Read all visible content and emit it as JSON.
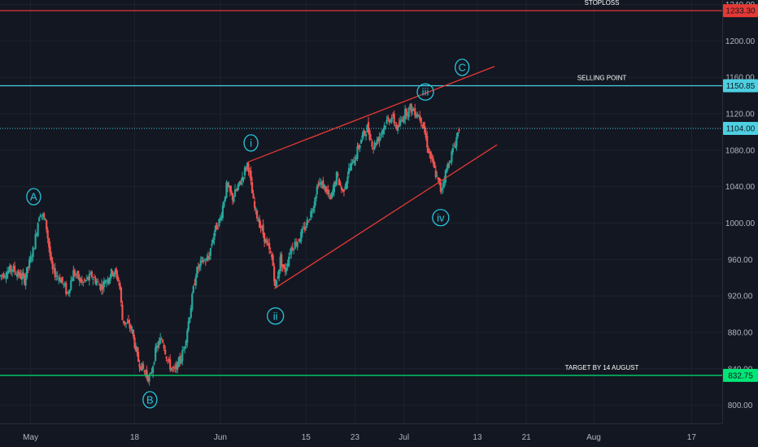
{
  "colors": {
    "background": "#131722",
    "grid": "#1e222d",
    "up": "#26a69a",
    "down": "#ef5350",
    "stoploss": "#e53935",
    "selling": "#4dd0e1",
    "target": "#00e676",
    "channel": "#e53935",
    "wave": "#26c6da",
    "axis_text": "#b2b5be",
    "annotation_text": "#ffffff"
  },
  "chart_data": {
    "type": "candlestick",
    "x_ticks": [
      {
        "label": "May",
        "day": 0
      },
      {
        "label": "18",
        "day": 17
      },
      {
        "label": "Jun",
        "day": 31
      },
      {
        "label": "15",
        "day": 45
      },
      {
        "label": "23",
        "day": 53
      },
      {
        "label": "Jul",
        "day": 61
      },
      {
        "label": "13",
        "day": 73
      },
      {
        "label": "21",
        "day": 81
      },
      {
        "label": "Aug",
        "day": 92
      },
      {
        "label": "17",
        "day": 108
      }
    ],
    "xlim": [
      -5,
      113
    ],
    "y_ticks": [
      "800.00",
      "840.00",
      "880.00",
      "920.00",
      "960.00",
      "1000.00",
      "1040.00",
      "1080.00",
      "1120.00",
      "1160.00",
      "1200.00",
      "1240.00"
    ],
    "ylim": [
      780,
      1245
    ],
    "price_levels": [
      {
        "name": "stoploss",
        "price": 1233.3,
        "label": "1233.30",
        "annotation": "STOPLOSS",
        "color": "#e53935",
        "style": "solid"
      },
      {
        "name": "selling-point",
        "price": 1150.85,
        "label": "1150.85",
        "annotation": "SELLING POINT",
        "color": "#4dd0e1",
        "style": "solid"
      },
      {
        "name": "last-price",
        "price": 1104.0,
        "label": "1104.00",
        "annotation": "",
        "color": "#4dd0e1",
        "style": "dotted"
      },
      {
        "name": "target",
        "price": 832.75,
        "label": "832.75",
        "annotation": "TARGET BY 14 AUGUST",
        "color": "#00e676",
        "style": "solid"
      }
    ],
    "channel_lines": [
      {
        "name": "upper-channel",
        "points": [
          [
            35.5,
            1067
          ],
          [
            75.8,
            1172
          ]
        ]
      },
      {
        "name": "lower-channel",
        "points": [
          [
            39.8,
            928
          ],
          [
            76.2,
            1086
          ]
        ]
      }
    ],
    "wave_labels": [
      {
        "label": "A",
        "day": 0.5,
        "price": 1029
      },
      {
        "label": "B",
        "day": 19.5,
        "price": 806
      },
      {
        "label": "i",
        "day": 36,
        "price": 1088
      },
      {
        "label": "ii",
        "day": 40,
        "price": 898
      },
      {
        "label": "iii",
        "day": 64.5,
        "price": 1144
      },
      {
        "label": "iv",
        "day": 67,
        "price": 1006
      },
      {
        "label": "C",
        "day": 70.5,
        "price": 1171
      }
    ],
    "price_anchors": [
      [
        -5,
        942
      ],
      [
        -3,
        950
      ],
      [
        -1,
        938
      ],
      [
        0.5,
        972
      ],
      [
        1.5,
        1014
      ],
      [
        2.5,
        1000
      ],
      [
        3.5,
        948
      ],
      [
        5,
        938
      ],
      [
        6,
        922
      ],
      [
        7,
        946
      ],
      [
        8.5,
        934
      ],
      [
        10,
        942
      ],
      [
        11.5,
        930
      ],
      [
        13.5,
        948
      ],
      [
        14.5,
        936
      ],
      [
        15,
        894
      ],
      [
        16.5,
        884
      ],
      [
        17.5,
        850
      ],
      [
        18.5,
        838
      ],
      [
        19.5,
        828
      ],
      [
        20.5,
        862
      ],
      [
        21.5,
        874
      ],
      [
        22.5,
        846
      ],
      [
        23.5,
        836
      ],
      [
        25,
        860
      ],
      [
        26,
        900
      ],
      [
        27,
        945
      ],
      [
        28,
        958
      ],
      [
        29,
        960
      ],
      [
        30,
        990
      ],
      [
        31,
        1005
      ],
      [
        32,
        1040
      ],
      [
        33,
        1028
      ],
      [
        34,
        1040
      ],
      [
        35.5,
        1067
      ],
      [
        36.5,
        1018
      ],
      [
        37.5,
        998
      ],
      [
        38.5,
        978
      ],
      [
        39.5,
        960
      ],
      [
        40,
        928
      ],
      [
        40.8,
        960
      ],
      [
        41.5,
        946
      ],
      [
        42.5,
        972
      ],
      [
        43.5,
        980
      ],
      [
        44.5,
        990
      ],
      [
        46,
        1015
      ],
      [
        47,
        1045
      ],
      [
        48,
        1040
      ],
      [
        49,
        1025
      ],
      [
        50,
        1052
      ],
      [
        51,
        1034
      ],
      [
        52,
        1058
      ],
      [
        53,
        1072
      ],
      [
        54,
        1092
      ],
      [
        55,
        1105
      ],
      [
        56,
        1084
      ],
      [
        57,
        1096
      ],
      [
        58,
        1110
      ],
      [
        59,
        1117
      ],
      [
        60,
        1103
      ],
      [
        61,
        1120
      ],
      [
        62,
        1126
      ],
      [
        63,
        1122
      ],
      [
        64,
        1112
      ],
      [
        65,
        1080
      ],
      [
        66,
        1058
      ],
      [
        67,
        1036
      ],
      [
        68,
        1060
      ],
      [
        69,
        1080
      ],
      [
        70,
        1104
      ]
    ]
  }
}
